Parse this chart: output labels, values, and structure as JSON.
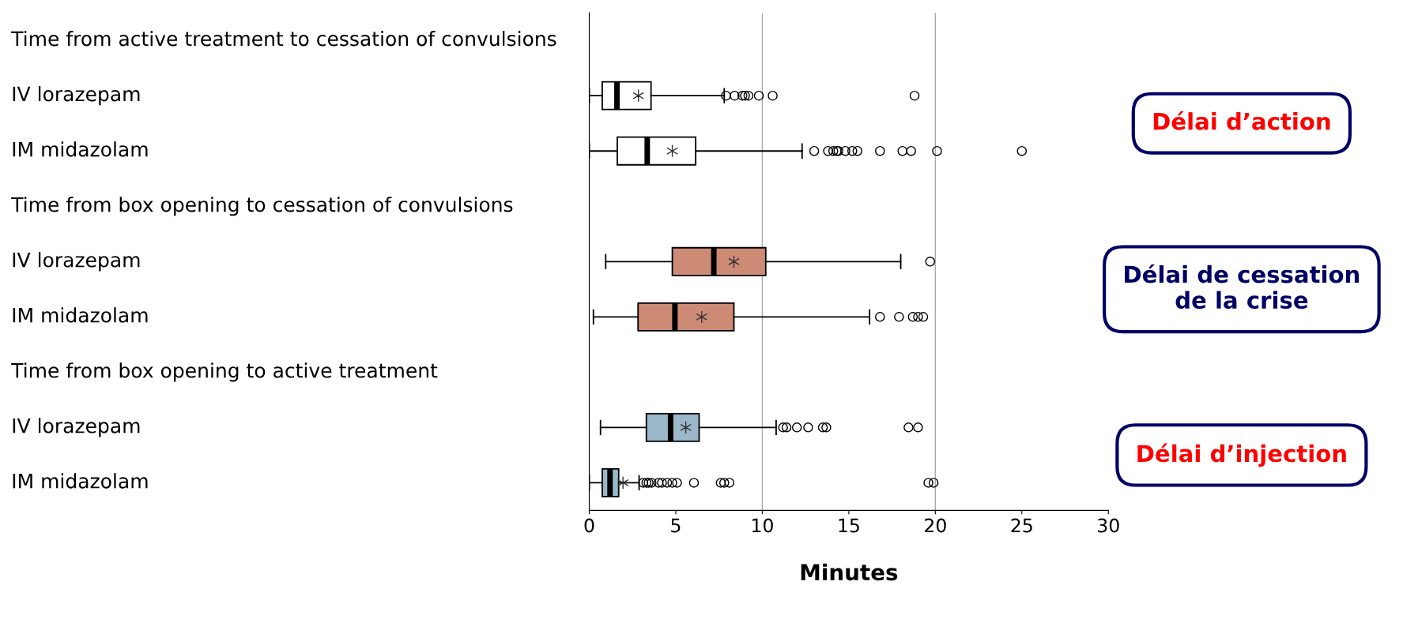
{
  "chart_data": {
    "type": "box",
    "orientation": "horizontal",
    "xlabel": "Minutes",
    "categories": [
      "Time from active treatment to cessation of convulsions",
      "IV lorazepam",
      "IM midazolam",
      "Time from box opening to cessation of convulsions",
      "IV lorazepam",
      "IM midazolam",
      "Time from box opening to active treatment",
      "IV lorazepam",
      "IM midazolam"
    ],
    "boxes": [
      null,
      {
        "low": 0,
        "q1": 0.75,
        "median": 1.6,
        "q3": 3.57,
        "high": 7.8,
        "mean": 2.84,
        "outliers": [
          7.9,
          8.4,
          8.85,
          9.0,
          9.2,
          9.8,
          10.6,
          18.8
        ]
      },
      {
        "low": 0,
        "q1": 1.62,
        "median": 3.35,
        "q3": 6.15,
        "high": 12.3,
        "mean": 4.8,
        "outliers": [
          13.0,
          13.8,
          14.1,
          14.3,
          14.4,
          14.8,
          15.2,
          15.5,
          16.8,
          18.1,
          18.6,
          20.1,
          25.0
        ]
      },
      null,
      {
        "low": 0.95,
        "q1": 4.8,
        "median": 7.2,
        "q3": 10.2,
        "high": 18.0,
        "mean": 8.36,
        "outliers": [
          19.7
        ]
      },
      {
        "low": 0.24,
        "q1": 2.82,
        "median": 4.95,
        "q3": 8.36,
        "high": 16.2,
        "mean": 6.5,
        "outliers": [
          16.8,
          17.9,
          18.7,
          19.0,
          19.3
        ]
      },
      null,
      {
        "low": 0.65,
        "q1": 3.3,
        "median": 4.7,
        "q3": 6.35,
        "high": 10.8,
        "mean": 5.58,
        "outliers": [
          11.2,
          11.4,
          12.0,
          12.65,
          13.5,
          13.7,
          18.45,
          19.0
        ]
      },
      {
        "low": 0,
        "q1": 0.75,
        "median": 1.2,
        "q3": 1.7,
        "high": 2.88,
        "mean": 1.95,
        "outliers": [
          3.12,
          3.3,
          3.43,
          3.6,
          4.0,
          4.2,
          4.5,
          4.8,
          5.07,
          6.05,
          7.6,
          7.8,
          8.1,
          19.6,
          19.9
        ]
      }
    ],
    "colors": [
      null,
      "#ffffff",
      "#ffffff",
      null,
      "#cd8b76",
      "#cd8b76",
      null,
      "#9ab8c9",
      "#9ab8c9"
    ],
    "xlim": [
      0,
      30
    ],
    "xticks": [
      0,
      5,
      10,
      15,
      20,
      25,
      30
    ],
    "grid": false,
    "ref_lines": [
      {
        "axis": "x",
        "value": 10,
        "color": "#aaaaaa"
      },
      {
        "axis": "x",
        "value": 20,
        "color": "#aaaaaa"
      }
    ],
    "annotations": [
      "Délai d’action",
      "Délai de cessation\nde la crise",
      "Délai d’injection"
    ]
  }
}
